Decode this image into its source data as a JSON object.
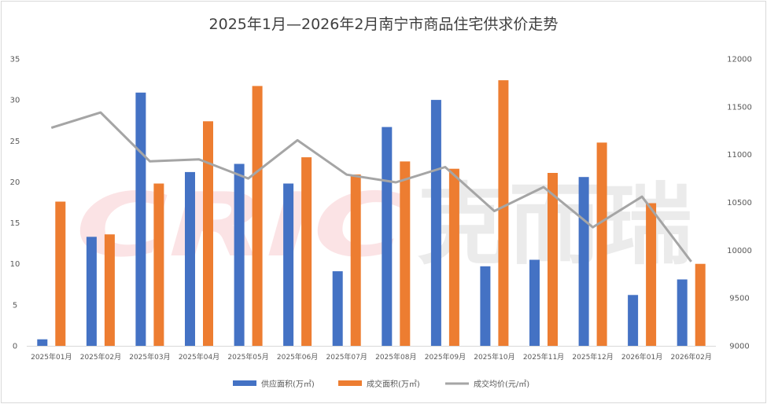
{
  "chart_data": {
    "type": "bar",
    "title": "2025年1月—2026年2月南宁市商品住宅供求价走势",
    "categories": [
      "2025年01月",
      "2025年02月",
      "2025年03月",
      "2025年04月",
      "2025年05月",
      "2025年06月",
      "2025年07月",
      "2025年08月",
      "2025年09月",
      "2025年10月",
      "2025年11月",
      "2025年12月",
      "2026年01月",
      "2026年02月"
    ],
    "series": [
      {
        "name": "供应面积(万㎡)",
        "type": "bar",
        "axis": "left",
        "color": "#4472C4",
        "values": [
          0.8,
          13.3,
          30.9,
          21.2,
          22.2,
          19.8,
          9.1,
          26.7,
          30.0,
          9.7,
          10.5,
          20.6,
          6.2,
          8.1
        ]
      },
      {
        "name": "成交面积(万㎡)",
        "type": "bar",
        "axis": "left",
        "color": "#ED7D31",
        "values": [
          17.6,
          13.6,
          19.8,
          27.4,
          31.7,
          23.0,
          20.9,
          22.5,
          21.6,
          32.4,
          21.1,
          24.8,
          17.4,
          10.0
        ]
      },
      {
        "name": "成交均价(元/㎡)",
        "type": "line",
        "axis": "right",
        "color": "#A5A5A5",
        "values": [
          11280,
          11440,
          10930,
          10950,
          10750,
          11150,
          10790,
          10710,
          10870,
          10410,
          10660,
          10240,
          10560,
          9880
        ]
      }
    ],
    "left_axis": {
      "min": 0,
      "max": 35,
      "step": 5,
      "ticks": [
        "0",
        "5",
        "10",
        "15",
        "20",
        "25",
        "30",
        "35"
      ]
    },
    "right_axis": {
      "min": 9000,
      "max": 12000,
      "step": 500,
      "ticks": [
        "9000",
        "9500",
        "10000",
        "10500",
        "11000",
        "11500",
        "12000"
      ]
    },
    "grid": false,
    "legend_position": "bottom",
    "watermark": "CRIC克而瑞"
  }
}
